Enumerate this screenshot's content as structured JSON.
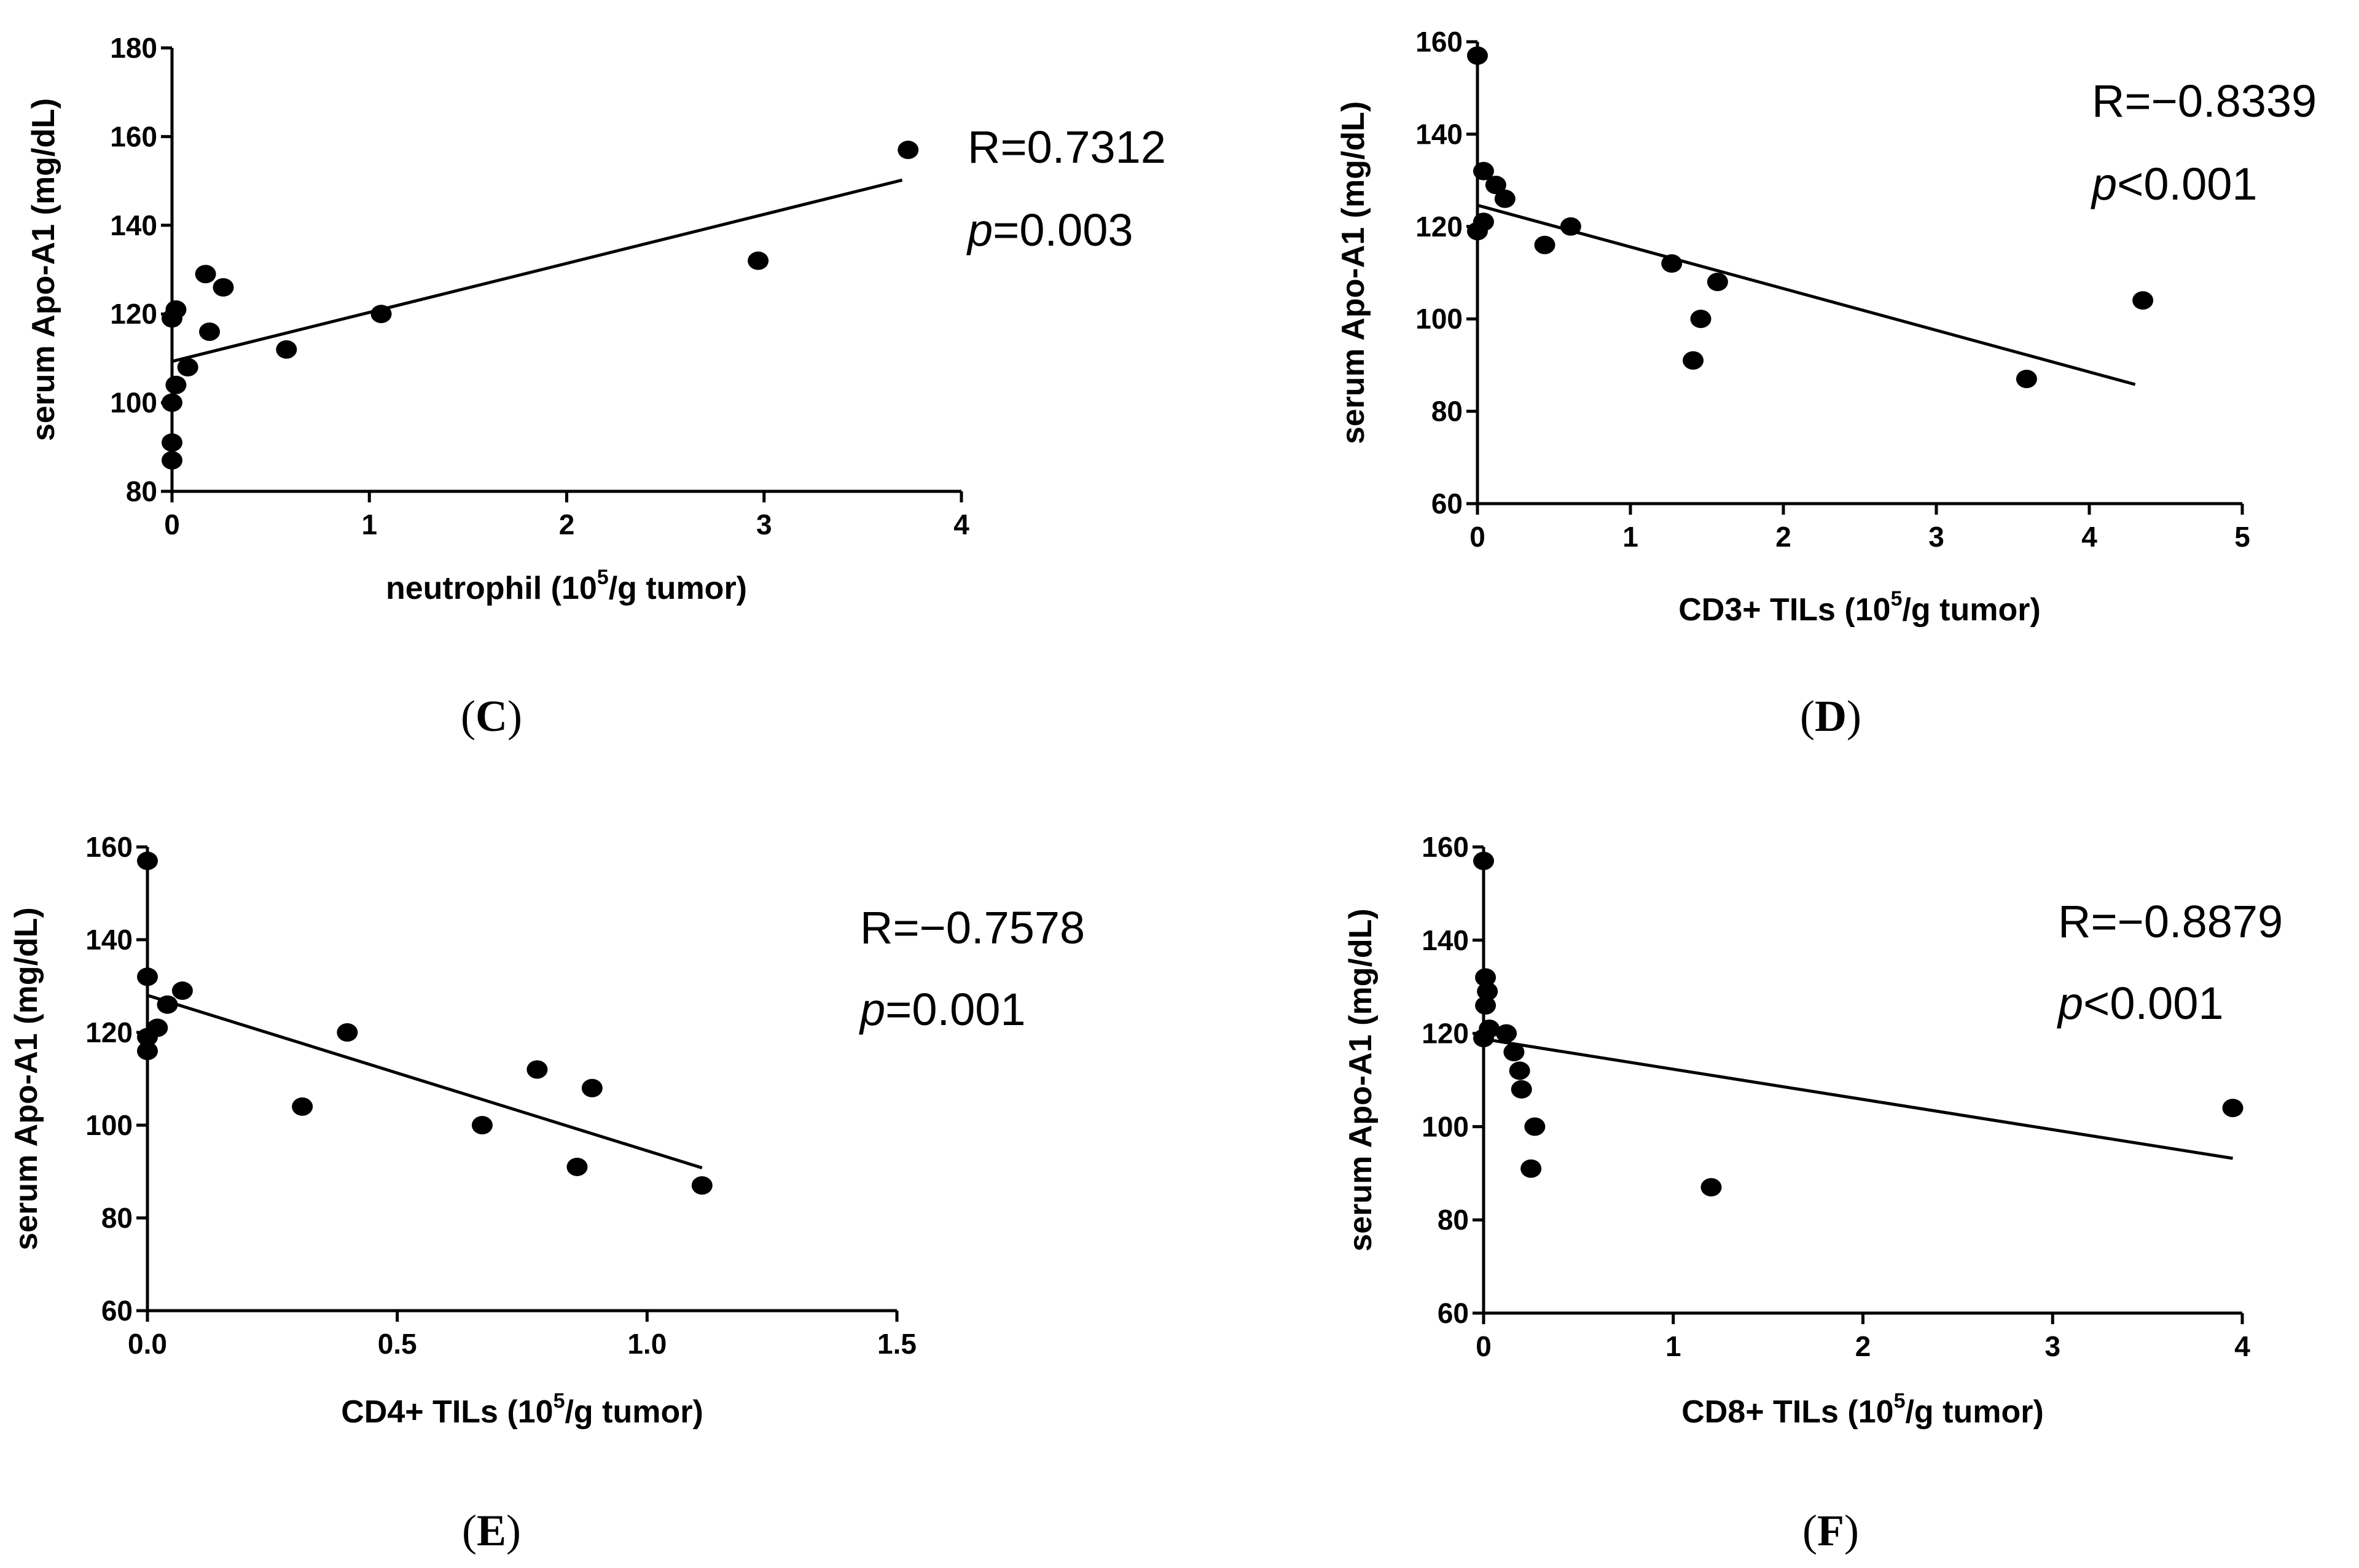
{
  "chart_data": [
    {
      "id": "C",
      "type": "scatter",
      "panel_label": "C",
      "xlabel_prefix": "neutrophil (10",
      "xlabel_sup": "5",
      "xlabel_suffix": "/g tumor)",
      "ylabel": "serum Apo-A1 (mg/dL)",
      "xlim": [
        0,
        4
      ],
      "ylim": [
        80,
        180
      ],
      "xticks": [
        0,
        1,
        2,
        3,
        4
      ],
      "xtick_labels": [
        "0",
        "1",
        "2",
        "3",
        "4"
      ],
      "yticks": [
        80,
        100,
        120,
        140,
        160,
        180
      ],
      "ytick_labels": [
        "80",
        "100",
        "120",
        "140",
        "160",
        "180"
      ],
      "points": [
        [
          0.0,
          87
        ],
        [
          0.0,
          91
        ],
        [
          0.0,
          100
        ],
        [
          0.02,
          104
        ],
        [
          0.08,
          108
        ],
        [
          0.0,
          119
        ],
        [
          0.02,
          121
        ],
        [
          0.17,
          129
        ],
        [
          0.19,
          116
        ],
        [
          0.26,
          126
        ],
        [
          0.58,
          112
        ],
        [
          1.06,
          120
        ],
        [
          2.97,
          132
        ],
        [
          3.73,
          157
        ]
      ],
      "fit_line": [
        [
          0.0,
          109.3
        ],
        [
          3.7,
          150.2
        ]
      ],
      "r_text": "R=0.7312",
      "p_symbol": "p",
      "p_rest": "=0.003"
    },
    {
      "id": "D",
      "type": "scatter",
      "panel_label": "D",
      "xlabel_prefix": "CD3+ TILs (10",
      "xlabel_sup": "5",
      "xlabel_suffix": "/g tumor)",
      "ylabel": "serum Apo-A1 (mg/dL)",
      "xlim": [
        0,
        5
      ],
      "ylim": [
        60,
        160
      ],
      "xticks": [
        0,
        1,
        2,
        3,
        4,
        5
      ],
      "xtick_labels": [
        "0",
        "1",
        "2",
        "3",
        "4",
        "5"
      ],
      "yticks": [
        60,
        80,
        100,
        120,
        140,
        160
      ],
      "ytick_labels": [
        "60",
        "80",
        "100",
        "120",
        "140",
        "160"
      ],
      "points": [
        [
          0.0,
          157
        ],
        [
          0.0,
          119
        ],
        [
          0.04,
          121
        ],
        [
          0.04,
          132
        ],
        [
          0.12,
          129
        ],
        [
          0.18,
          126
        ],
        [
          0.44,
          116
        ],
        [
          0.61,
          120
        ],
        [
          1.27,
          112
        ],
        [
          1.41,
          91
        ],
        [
          1.46,
          100
        ],
        [
          1.57,
          108
        ],
        [
          3.59,
          87
        ],
        [
          4.35,
          104
        ]
      ],
      "fit_line": [
        [
          0.0,
          124.6
        ],
        [
          4.3,
          85.8
        ]
      ],
      "r_text": "R=−0.8339",
      "p_symbol": "p",
      "p_rest": "<0.001"
    },
    {
      "id": "E",
      "type": "scatter",
      "panel_label": "E",
      "xlabel_prefix": "CD4+ TILs (10",
      "xlabel_sup": "5",
      "xlabel_suffix": "/g tumor)",
      "ylabel": "serum Apo-A1 (mg/dL)",
      "xlim": [
        0,
        1.5
      ],
      "ylim": [
        60,
        160
      ],
      "xticks": [
        0.0,
        0.5,
        1.0,
        1.5
      ],
      "xtick_labels": [
        "0.0",
        "0.5",
        "1.0",
        "1.5"
      ],
      "yticks": [
        60,
        80,
        100,
        120,
        140,
        160
      ],
      "ytick_labels": [
        "60",
        "80",
        "100",
        "120",
        "140",
        "160"
      ],
      "points": [
        [
          0.0,
          157
        ],
        [
          0.0,
          132
        ],
        [
          0.0,
          119
        ],
        [
          0.0,
          116
        ],
        [
          0.02,
          121
        ],
        [
          0.04,
          126
        ],
        [
          0.07,
          129
        ],
        [
          0.31,
          104
        ],
        [
          0.4,
          120
        ],
        [
          0.67,
          100
        ],
        [
          0.78,
          112
        ],
        [
          0.86,
          91
        ],
        [
          0.89,
          108
        ],
        [
          1.11,
          87
        ]
      ],
      "fit_line": [
        [
          0.0,
          128.0
        ],
        [
          1.11,
          90.8
        ]
      ],
      "r_text": "R=−0.7578",
      "p_symbol": "p",
      "p_rest": "=0.001"
    },
    {
      "id": "F",
      "type": "scatter",
      "panel_label": "F",
      "xlabel_prefix": "CD8+ TILs (10",
      "xlabel_sup": "5",
      "xlabel_suffix": "/g tumor)",
      "ylabel": "serum Apo-A1 (mg/dL)",
      "xlim": [
        0,
        4
      ],
      "ylim": [
        60,
        160
      ],
      "xticks": [
        0,
        1,
        2,
        3,
        4
      ],
      "xtick_labels": [
        "0",
        "1",
        "2",
        "3",
        "4"
      ],
      "yticks": [
        60,
        80,
        100,
        120,
        140,
        160
      ],
      "ytick_labels": [
        "60",
        "80",
        "100",
        "120",
        "140",
        "160"
      ],
      "points": [
        [
          0.0,
          157
        ],
        [
          0.01,
          132
        ],
        [
          0.02,
          129
        ],
        [
          0.01,
          126
        ],
        [
          0.0,
          119
        ],
        [
          0.03,
          121
        ],
        [
          0.12,
          120
        ],
        [
          0.16,
          116
        ],
        [
          0.19,
          112
        ],
        [
          0.2,
          108
        ],
        [
          0.25,
          91
        ],
        [
          0.27,
          100
        ],
        [
          1.2,
          87
        ],
        [
          3.95,
          104
        ]
      ],
      "fit_line": [
        [
          0.0,
          118.8
        ],
        [
          3.95,
          93.2
        ]
      ],
      "r_text": "R=−0.8879",
      "p_symbol": "p",
      "p_rest": "<0.001"
    }
  ]
}
